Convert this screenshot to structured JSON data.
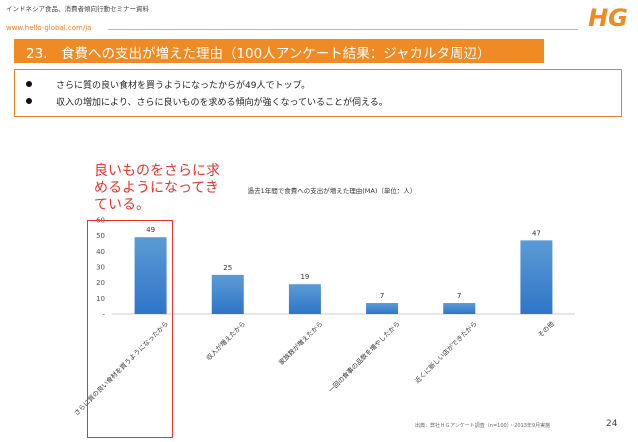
{
  "header": {
    "breadcrumb": "インドネシア食品、消費者傾向行動セミナー資料",
    "url": "www.hello-global.com/ja",
    "logo_text": "HG"
  },
  "slide": {
    "title": "23.　食費への支出が増えた理由（100人アンケート結果：ジャカルタ周辺）",
    "bullets": [
      "さらに質の良い食材を買うようになったからが49人でトップ。",
      "収入の増加により、さらに良いものを求める傾向が強くなっていることが伺える。"
    ],
    "callout": "良いものをさらに求めるようになってきている。",
    "footer_source": "出典：弊社ＨＧアンケート調査（n=100）・2013年9月実施",
    "page_number": "24"
  },
  "colors": {
    "accent": "#f08a24",
    "highlight": "#e8342c",
    "bar_top": "#5b9bd5",
    "bar_bottom": "#2f75c8"
  },
  "chart_data": {
    "type": "bar",
    "title": "過去1年間で食費への支出が増えた理由(MA)（単位：人）",
    "categories": [
      "さらに質の良い食材を買うようになったから",
      "収入が増えたから",
      "家族数が増えたから",
      "一回の食事の品数を増やしたから",
      "近くに新しい店ができたから",
      "その他"
    ],
    "values": [
      49,
      25,
      19,
      7,
      7,
      47
    ],
    "ylim": [
      0,
      60
    ],
    "yticks": [
      "-",
      "10",
      "20",
      "30",
      "40",
      "50",
      "60"
    ],
    "data_labels": [
      "49",
      "25",
      "19",
      "7",
      "7",
      "47"
    ],
    "grid": false
  }
}
